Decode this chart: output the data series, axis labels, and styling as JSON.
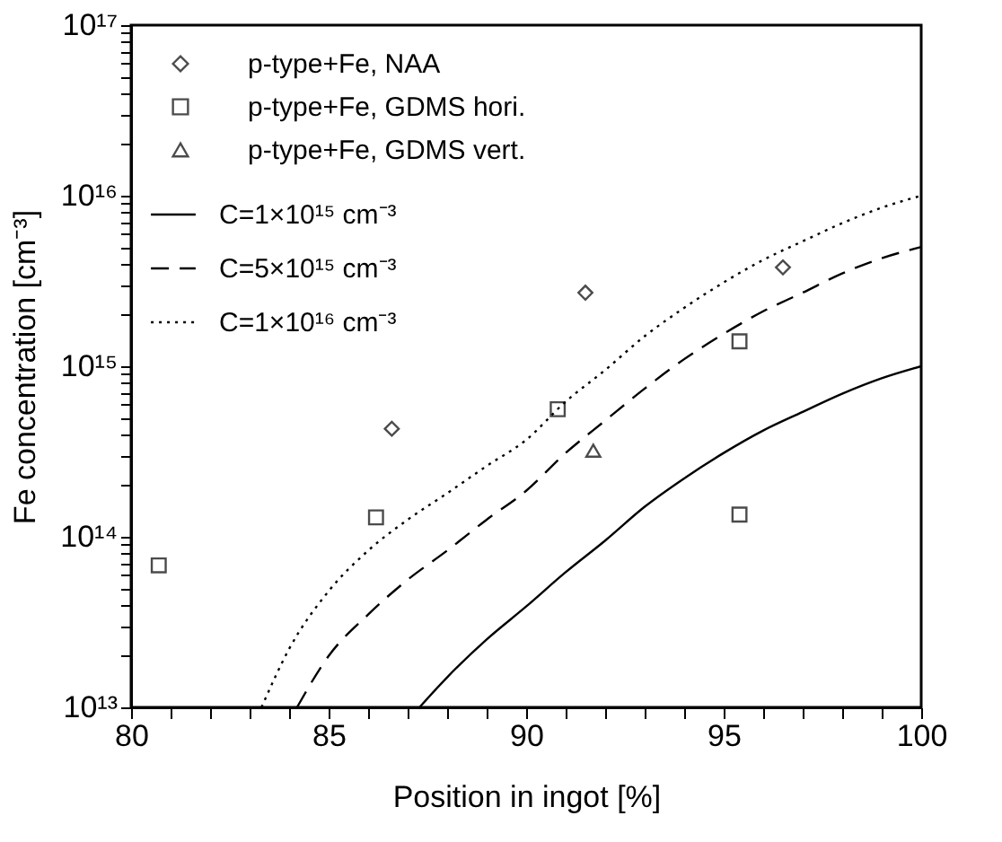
{
  "chart_data": {
    "type": "scatter",
    "xlabel": "Position in ingot [%]",
    "ylabel": "Fe concentration [cm⁻³]",
    "log": "y",
    "xlim": [
      80,
      100
    ],
    "xticks": [
      80,
      {
        "value": 81,
        "label": null
      },
      {
        "value": 82,
        "label": null
      },
      {
        "value": 83,
        "label": null
      },
      {
        "value": 84,
        "label": null
      },
      85,
      {
        "value": 86,
        "label": null
      },
      {
        "value": 87,
        "label": null
      },
      {
        "value": 88,
        "label": null
      },
      {
        "value": 89,
        "label": null
      },
      90,
      {
        "value": 91,
        "label": null
      },
      {
        "value": 92,
        "label": null
      },
      {
        "value": 93,
        "label": null
      },
      {
        "value": 94,
        "label": null
      },
      95,
      {
        "value": 96,
        "label": null
      },
      {
        "value": 97,
        "label": null
      },
      {
        "value": 98,
        "label": null
      },
      {
        "value": 99,
        "label": null
      },
      100
    ],
    "ylim": [
      10000000000000.0,
      1e+17
    ],
    "yticks": [
      {
        "value": 10000000000000.0,
        "label": "10¹³"
      },
      {
        "value": 20000000000000.0,
        "label": null
      },
      {
        "value": 30000000000000.0,
        "label": null
      },
      {
        "value": 40000000000000.0,
        "label": null
      },
      {
        "value": 50000000000000.0,
        "label": null
      },
      {
        "value": 60000000000000.0,
        "label": null
      },
      {
        "value": 70000000000000.0,
        "label": null
      },
      {
        "value": 80000000000000.0,
        "label": null
      },
      {
        "value": 90000000000000.0,
        "label": null
      },
      {
        "value": 100000000000000.0,
        "label": "10¹⁴"
      },
      {
        "value": 200000000000000.0,
        "label": null
      },
      {
        "value": 300000000000000.0,
        "label": null
      },
      {
        "value": 400000000000000.0,
        "label": null
      },
      {
        "value": 500000000000000.0,
        "label": null
      },
      {
        "value": 600000000000000.0,
        "label": null
      },
      {
        "value": 700000000000000.0,
        "label": null
      },
      {
        "value": 800000000000000.0,
        "label": null
      },
      {
        "value": 900000000000000.0,
        "label": null
      },
      {
        "value": 1000000000000000.0,
        "label": "10¹⁵"
      },
      {
        "value": 2000000000000000.0,
        "label": null
      },
      {
        "value": 3000000000000000.0,
        "label": null
      },
      {
        "value": 4000000000000000.0,
        "label": null
      },
      {
        "value": 5000000000000000.0,
        "label": null
      },
      {
        "value": 6000000000000000.0,
        "label": null
      },
      {
        "value": 7000000000000000.0,
        "label": null
      },
      {
        "value": 8000000000000000.0,
        "label": null
      },
      {
        "value": 9000000000000000.0,
        "label": null
      },
      {
        "value": 1e+16,
        "label": "10¹⁶"
      },
      {
        "value": 2e+16,
        "label": null
      },
      {
        "value": 3e+16,
        "label": null
      },
      {
        "value": 4e+16,
        "label": null
      },
      {
        "value": 5e+16,
        "label": null
      },
      {
        "value": 6e+16,
        "label": null
      },
      {
        "value": 7e+16,
        "label": null
      },
      {
        "value": 8e+16,
        "label": null
      },
      {
        "value": 9e+16,
        "label": null
      },
      {
        "value": 1e+17,
        "label": "10¹⁷"
      }
    ],
    "grid": false,
    "legend": "top left",
    "series": [
      {
        "name": "p-type+Fe, NAA",
        "marker": "diamond",
        "color": "#000000",
        "x": [
          86.6,
          91.5,
          96.5
        ],
        "values": [
          430000000000000.0,
          2700000000000000.0,
          3800000000000000.0
        ]
      },
      {
        "name": "p-type+Fe, GDMS hori.",
        "marker": "square",
        "color": "#000000",
        "x": [
          80.7,
          86.2,
          90.8,
          95.4,
          95.4
        ],
        "values": [
          68000000000000.0,
          130000000000000.0,
          560000000000000.0,
          1400000000000000.0,
          135000000000000.0
        ]
      },
      {
        "name": "p-type+Fe, GDMS vert.",
        "marker": "triangle",
        "color": "#000000",
        "x": [
          91.7
        ],
        "values": [
          320000000000000.0
        ]
      },
      {
        "name": "C=1×10¹⁵ cm⁻³",
        "type": "line",
        "line_style": "solid",
        "marker": "none",
        "color": "#000000",
        "x": [
          87.3,
          88,
          89,
          90,
          91,
          92,
          93,
          94,
          95,
          96,
          97,
          98,
          99,
          100
        ],
        "values": [
          10000000000000.0,
          15000000000000.0,
          25000000000000.0,
          39000000000000.0,
          62000000000000.0,
          95000000000000.0,
          150000000000000.0,
          220000000000000.0,
          310000000000000.0,
          420000000000000.0,
          540000000000000.0,
          690000000000000.0,
          850000000000000.0,
          1000000000000000.0
        ]
      },
      {
        "name": "C=5×10¹⁵ cm⁻³",
        "type": "line",
        "line_style": "dashed",
        "marker": "none",
        "color": "#000000",
        "x": [
          84.2,
          85,
          86,
          87,
          88,
          89,
          90,
          91,
          92,
          93,
          94,
          95,
          96,
          97,
          98,
          99,
          100
        ],
        "values": [
          10000000000000.0,
          20000000000000.0,
          35000000000000.0,
          56000000000000.0,
          83000000000000.0,
          126000000000000.0,
          186000000000000.0,
          310000000000000.0,
          480000000000000.0,
          740000000000000.0,
          1100000000000000.0,
          1550000000000000.0,
          2100000000000000.0,
          2700000000000000.0,
          3500000000000000.0,
          4300000000000000.0,
          5000000000000000.0
        ]
      },
      {
        "name": "C=1×10¹⁶ cm⁻³",
        "type": "line",
        "line_style": "dotted",
        "marker": "none",
        "color": "#000000",
        "x": [
          83.3,
          84,
          85,
          86,
          87,
          88,
          89,
          90,
          91,
          92,
          93,
          94,
          95,
          96,
          97,
          98,
          99,
          100
        ],
        "values": [
          10000000000000.0,
          22000000000000.0,
          48000000000000.0,
          83000000000000.0,
          126000000000000.0,
          180000000000000.0,
          260000000000000.0,
          370000000000000.0,
          620000000000000.0,
          950000000000000.0,
          1500000000000000.0,
          2200000000000000.0,
          3100000000000000.0,
          4200000000000000.0,
          5400000000000000.0,
          6900000000000000.0,
          8500000000000000.0,
          1e+16
        ]
      }
    ]
  }
}
